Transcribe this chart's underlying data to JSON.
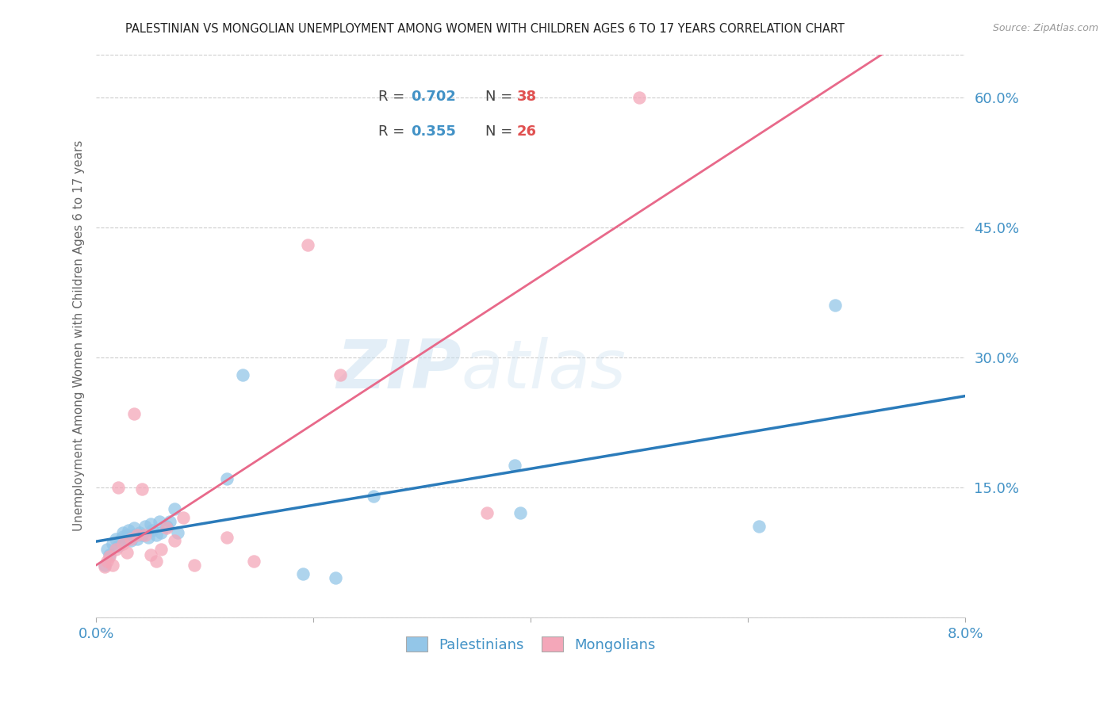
{
  "title": "PALESTINIAN VS MONGOLIAN UNEMPLOYMENT AMONG WOMEN WITH CHILDREN AGES 6 TO 17 YEARS CORRELATION CHART",
  "source": "Source: ZipAtlas.com",
  "ylabel": "Unemployment Among Women with Children Ages 6 to 17 years",
  "xlim": [
    0.0,
    0.08
  ],
  "ylim": [
    0.0,
    0.65
  ],
  "xticks": [
    0.0,
    0.02,
    0.04,
    0.06,
    0.08
  ],
  "yticks_right": [
    0.0,
    0.15,
    0.3,
    0.45,
    0.6
  ],
  "yticklabels_right": [
    "",
    "15.0%",
    "30.0%",
    "45.0%",
    "60.0%"
  ],
  "r_pal": "0.702",
  "n_pal": "38",
  "r_mon": "0.355",
  "n_mon": "26",
  "color_blue": "#93c6e8",
  "color_pink": "#f4a7b9",
  "color_line_blue": "#2b7bba",
  "color_line_pink": "#e8698a",
  "color_axis": "#4292c6",
  "color_r_val": "#4292c6",
  "color_n_val": "#e05050",
  "watermark_zip": "ZIP",
  "watermark_atlas": "atlas",
  "background_color": "#ffffff",
  "grid_color": "#cccccc",
  "palestinians_x": [
    0.0008,
    0.001,
    0.0012,
    0.0015,
    0.0018,
    0.002,
    0.0022,
    0.0025,
    0.0025,
    0.0028,
    0.003,
    0.003,
    0.0032,
    0.0035,
    0.0035,
    0.0038,
    0.004,
    0.0042,
    0.0045,
    0.0048,
    0.005,
    0.0052,
    0.0055,
    0.0058,
    0.006,
    0.0065,
    0.0068,
    0.0072,
    0.0075,
    0.012,
    0.0135,
    0.019,
    0.022,
    0.0255,
    0.0385,
    0.039,
    0.061,
    0.068
  ],
  "palestinians_y": [
    0.06,
    0.078,
    0.072,
    0.085,
    0.09,
    0.082,
    0.088,
    0.093,
    0.098,
    0.095,
    0.1,
    0.09,
    0.088,
    0.095,
    0.103,
    0.09,
    0.098,
    0.095,
    0.105,
    0.092,
    0.108,
    0.1,
    0.095,
    0.11,
    0.098,
    0.105,
    0.11,
    0.125,
    0.098,
    0.16,
    0.28,
    0.05,
    0.045,
    0.14,
    0.175,
    0.12,
    0.105,
    0.36
  ],
  "mongolians_x": [
    0.0008,
    0.001,
    0.0012,
    0.0015,
    0.0018,
    0.002,
    0.0025,
    0.0028,
    0.0032,
    0.0035,
    0.0038,
    0.0042,
    0.0045,
    0.005,
    0.0055,
    0.006,
    0.0065,
    0.0072,
    0.008,
    0.009,
    0.012,
    0.0145,
    0.0195,
    0.0225,
    0.036,
    0.05
  ],
  "mongolians_y": [
    0.058,
    0.065,
    0.07,
    0.06,
    0.078,
    0.15,
    0.085,
    0.075,
    0.09,
    0.235,
    0.095,
    0.148,
    0.095,
    0.072,
    0.065,
    0.078,
    0.103,
    0.088,
    0.115,
    0.06,
    0.092,
    0.065,
    0.43,
    0.28,
    0.12,
    0.6
  ]
}
